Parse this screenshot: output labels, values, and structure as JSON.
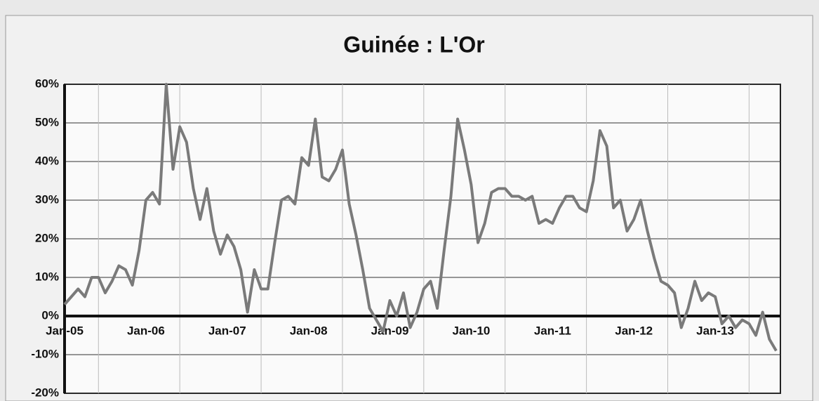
{
  "chart_data": {
    "type": "line",
    "title": "Guinée : L'Or",
    "categories": [
      "Jan-05",
      null,
      null,
      null,
      null,
      null,
      null,
      null,
      null,
      null,
      null,
      null,
      "Jan-06",
      null,
      null,
      null,
      null,
      null,
      null,
      null,
      null,
      null,
      null,
      null,
      "Jan-07",
      null,
      null,
      null,
      null,
      null,
      null,
      null,
      null,
      null,
      null,
      null,
      "Jan-08",
      null,
      null,
      null,
      null,
      null,
      null,
      null,
      null,
      null,
      null,
      null,
      "Jan-09",
      null,
      null,
      null,
      null,
      null,
      null,
      null,
      null,
      null,
      null,
      null,
      "Jan-10",
      null,
      null,
      null,
      null,
      null,
      null,
      null,
      null,
      null,
      null,
      null,
      "Jan-11",
      null,
      null,
      null,
      null,
      null,
      null,
      null,
      null,
      null,
      null,
      null,
      "Jan-12",
      null,
      null,
      null,
      null,
      null,
      null,
      null,
      null,
      null,
      null,
      null,
      "Jan-13",
      null,
      null,
      null,
      null,
      null,
      null,
      null,
      null,
      null
    ],
    "series": [
      {
        "color": "#7a7a7a",
        "values": [
          3,
          5,
          7,
          5,
          10,
          10,
          6,
          9,
          13,
          12,
          8,
          17,
          30,
          32,
          29,
          60,
          38,
          49,
          45,
          33,
          25,
          33,
          22,
          16,
          21,
          18,
          12,
          1,
          12,
          7,
          7,
          19,
          30,
          31,
          29,
          41,
          39,
          51,
          36,
          35,
          38,
          43,
          29,
          21,
          12,
          2,
          -1,
          -4,
          4,
          0,
          6,
          -3,
          1,
          7,
          9,
          2,
          17,
          31,
          51,
          43,
          34,
          19,
          24,
          32,
          33,
          33,
          31,
          31,
          30,
          31,
          24,
          25,
          24,
          28,
          31,
          31,
          28,
          27,
          35,
          48,
          44,
          28,
          30,
          22,
          25,
          30,
          22,
          15,
          9,
          8,
          6,
          -3,
          2,
          9,
          4,
          6,
          5,
          -2,
          0,
          -3,
          -1,
          -2,
          -5,
          1,
          -6,
          -9
        ]
      }
    ],
    "ylim": [
      -20,
      60
    ],
    "yticks": [
      {
        "value": -20,
        "label": "-20%"
      },
      {
        "value": -10,
        "label": "-10%"
      },
      {
        "value": 0,
        "label": "0%"
      },
      {
        "value": 10,
        "label": "10%"
      },
      {
        "value": 20,
        "label": "20%"
      },
      {
        "value": 30,
        "label": "30%"
      },
      {
        "value": 40,
        "label": "40%"
      },
      {
        "value": 50,
        "label": "50%"
      },
      {
        "value": 60,
        "label": "60%"
      }
    ],
    "grid": true
  }
}
